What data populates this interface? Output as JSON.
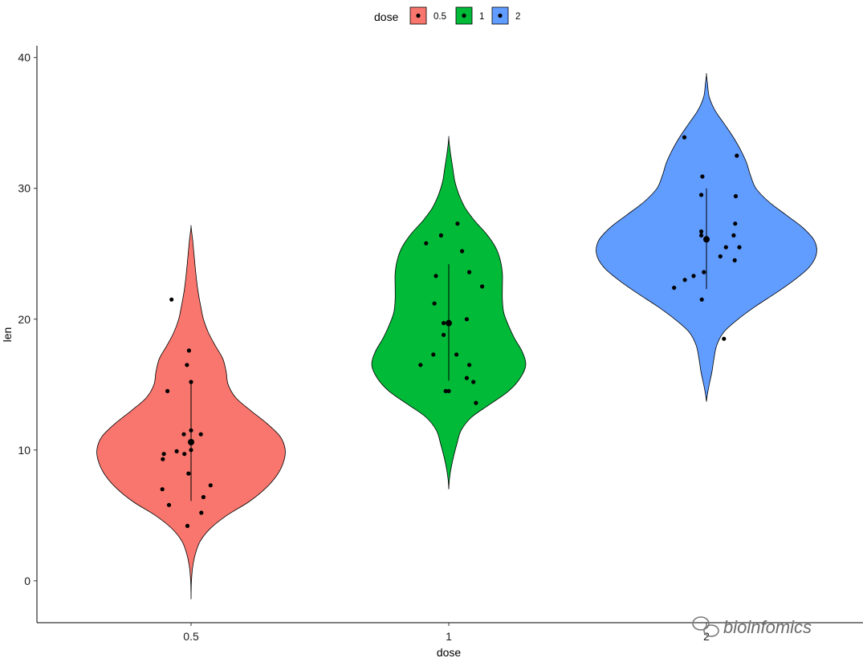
{
  "chart_data": {
    "type": "violin",
    "xlabel": "dose",
    "ylabel": "len",
    "categories": [
      "0.5",
      "1",
      "2"
    ],
    "ylim": [
      -3.2,
      40.9
    ],
    "yticks": [
      0,
      10,
      20,
      30,
      40
    ],
    "legend": {
      "title": "dose",
      "position": "top",
      "labels": [
        "0.5",
        "1",
        "2"
      ]
    },
    "colors": [
      "#F8766D",
      "#00BA38",
      "#619CFF"
    ],
    "grid": false,
    "violins": [
      {
        "dose": "0.5",
        "range": [
          -1.4,
          27.1
        ],
        "profile": [
          [
            -1.4,
            0
          ],
          [
            -0.5,
            0.2
          ],
          [
            0,
            0.6
          ],
          [
            1,
            2.2
          ],
          [
            2,
            6
          ],
          [
            3,
            13
          ],
          [
            4,
            28
          ],
          [
            5,
            52
          ],
          [
            6,
            83
          ],
          [
            7,
            107
          ],
          [
            8,
            124
          ],
          [
            9,
            134
          ],
          [
            10,
            137
          ],
          [
            11,
            130
          ],
          [
            12,
            111
          ],
          [
            13,
            87
          ],
          [
            14,
            65
          ],
          [
            15,
            54
          ],
          [
            16,
            51
          ],
          [
            17,
            46
          ],
          [
            18,
            35
          ],
          [
            19,
            25
          ],
          [
            20,
            18
          ],
          [
            21,
            14
          ],
          [
            22,
            10.5
          ],
          [
            23,
            8
          ],
          [
            24,
            6
          ],
          [
            25,
            4.2
          ],
          [
            26,
            2.4
          ],
          [
            26.6,
            1
          ],
          [
            27.1,
            0
          ]
        ]
      },
      {
        "dose": "1",
        "range": [
          7.0,
          33.9
        ],
        "profile": [
          [
            7.0,
            0
          ],
          [
            7.8,
            1
          ],
          [
            8.5,
            3
          ],
          [
            9.5,
            7
          ],
          [
            10.5,
            12
          ],
          [
            11.5,
            18
          ],
          [
            12.5,
            33
          ],
          [
            13.5,
            60
          ],
          [
            14.5,
            87
          ],
          [
            15.5,
            104
          ],
          [
            16.5,
            112
          ],
          [
            17.5,
            107
          ],
          [
            18.5,
            96
          ],
          [
            19.5,
            87
          ],
          [
            20.5,
            80
          ],
          [
            21.5,
            78
          ],
          [
            22.5,
            78
          ],
          [
            23.5,
            78
          ],
          [
            24.5,
            75
          ],
          [
            25.5,
            68
          ],
          [
            26.5,
            55
          ],
          [
            27.5,
            38
          ],
          [
            28.5,
            24
          ],
          [
            29.5,
            15
          ],
          [
            30.5,
            9
          ],
          [
            31.5,
            6
          ],
          [
            32.5,
            3
          ],
          [
            33.3,
            1
          ],
          [
            33.9,
            0
          ]
        ]
      },
      {
        "dose": "2",
        "range": [
          13.7,
          38.7
        ],
        "profile": [
          [
            13.7,
            0
          ],
          [
            14.3,
            1.5
          ],
          [
            15,
            4
          ],
          [
            16,
            8
          ],
          [
            17,
            11
          ],
          [
            18,
            15
          ],
          [
            19,
            25
          ],
          [
            20,
            46
          ],
          [
            21,
            72
          ],
          [
            22,
            101
          ],
          [
            23,
            128
          ],
          [
            24,
            150
          ],
          [
            25,
            160
          ],
          [
            26,
            157
          ],
          [
            27,
            140
          ],
          [
            28,
            115
          ],
          [
            29,
            90
          ],
          [
            30,
            72
          ],
          [
            31,
            64
          ],
          [
            32,
            58
          ],
          [
            33,
            49
          ],
          [
            34,
            38
          ],
          [
            35,
            25
          ],
          [
            36,
            12
          ],
          [
            37,
            4
          ],
          [
            38,
            1.5
          ],
          [
            38.7,
            0
          ]
        ]
      }
    ],
    "stats": [
      {
        "dose": "0.5",
        "median": 10.6,
        "range_line": [
          6.1,
          15.2
        ]
      },
      {
        "dose": "1",
        "median": 19.7,
        "range_line": [
          15.3,
          24.2
        ]
      },
      {
        "dose": "2",
        "median": 26.1,
        "range_line": [
          22.3,
          30.0
        ]
      }
    ],
    "points": [
      {
        "dose": "0.5",
        "values": [
          {
            "x": -0.38,
            "y": 21.5
          },
          {
            "x": -0.04,
            "y": 17.6
          },
          {
            "x": -0.08,
            "y": 16.5
          },
          {
            "x": -0.46,
            "y": 14.5
          },
          {
            "x": 0.0,
            "y": 15.2
          },
          {
            "x": 0.0,
            "y": 11.5
          },
          {
            "x": 0.19,
            "y": 11.2
          },
          {
            "x": -0.14,
            "y": 11.2
          },
          {
            "x": 0.0,
            "y": 10.6
          },
          {
            "x": 0.0,
            "y": 10.0
          },
          {
            "x": -0.28,
            "y": 9.9
          },
          {
            "x": -0.13,
            "y": 9.7
          },
          {
            "x": -0.53,
            "y": 9.7
          },
          {
            "x": -0.55,
            "y": 9.3
          },
          {
            "x": -0.05,
            "y": 8.2
          },
          {
            "x": 0.38,
            "y": 7.3
          },
          {
            "x": -0.56,
            "y": 7.0
          },
          {
            "x": 0.24,
            "y": 6.4
          },
          {
            "x": -0.43,
            "y": 5.8
          },
          {
            "x": 0.2,
            "y": 5.2
          },
          {
            "x": -0.07,
            "y": 4.2
          }
        ]
      },
      {
        "dose": "1",
        "values": [
          {
            "x": -0.15,
            "y": 26.4
          },
          {
            "x": 0.17,
            "y": 27.3
          },
          {
            "x": -0.44,
            "y": 25.8
          },
          {
            "x": 0.26,
            "y": 25.2
          },
          {
            "x": 0.4,
            "y": 23.6
          },
          {
            "x": -0.25,
            "y": 23.3
          },
          {
            "x": 0.65,
            "y": 22.5
          },
          {
            "x": -0.28,
            "y": 21.2
          },
          {
            "x": 0.35,
            "y": 20.0
          },
          {
            "x": -0.1,
            "y": 19.7
          },
          {
            "x": 0.0,
            "y": 19.7
          },
          {
            "x": -0.1,
            "y": 18.8
          },
          {
            "x": -0.3,
            "y": 17.3
          },
          {
            "x": 0.15,
            "y": 17.3
          },
          {
            "x": -0.55,
            "y": 16.5
          },
          {
            "x": 0.4,
            "y": 16.5
          },
          {
            "x": 0.35,
            "y": 15.5
          },
          {
            "x": 0.48,
            "y": 15.2
          },
          {
            "x": -0.06,
            "y": 14.5
          },
          {
            "x": 0.0,
            "y": 14.5
          },
          {
            "x": 0.53,
            "y": 13.6
          }
        ]
      },
      {
        "dose": "2",
        "values": [
          {
            "x": -0.43,
            "y": 33.9
          },
          {
            "x": 0.59,
            "y": 32.5
          },
          {
            "x": -0.08,
            "y": 30.9
          },
          {
            "x": -0.1,
            "y": 29.5
          },
          {
            "x": 0.57,
            "y": 29.4
          },
          {
            "x": 0.56,
            "y": 27.3
          },
          {
            "x": -0.1,
            "y": 26.7
          },
          {
            "x": 0.53,
            "y": 26.4
          },
          {
            "x": -0.1,
            "y": 26.4
          },
          {
            "x": 0.0,
            "y": 26.2
          },
          {
            "x": 0.38,
            "y": 25.5
          },
          {
            "x": 0.64,
            "y": 25.5
          },
          {
            "x": 0.27,
            "y": 24.8
          },
          {
            "x": 0.55,
            "y": 24.5
          },
          {
            "x": -0.05,
            "y": 23.6
          },
          {
            "x": -0.25,
            "y": 23.3
          },
          {
            "x": -0.42,
            "y": 23.0
          },
          {
            "x": -0.63,
            "y": 22.4
          },
          {
            "x": -0.09,
            "y": 21.5
          },
          {
            "x": 0.34,
            "y": 18.5
          }
        ]
      }
    ]
  },
  "watermark": {
    "text": "bioinfomics",
    "icon": "wechat-icon"
  }
}
